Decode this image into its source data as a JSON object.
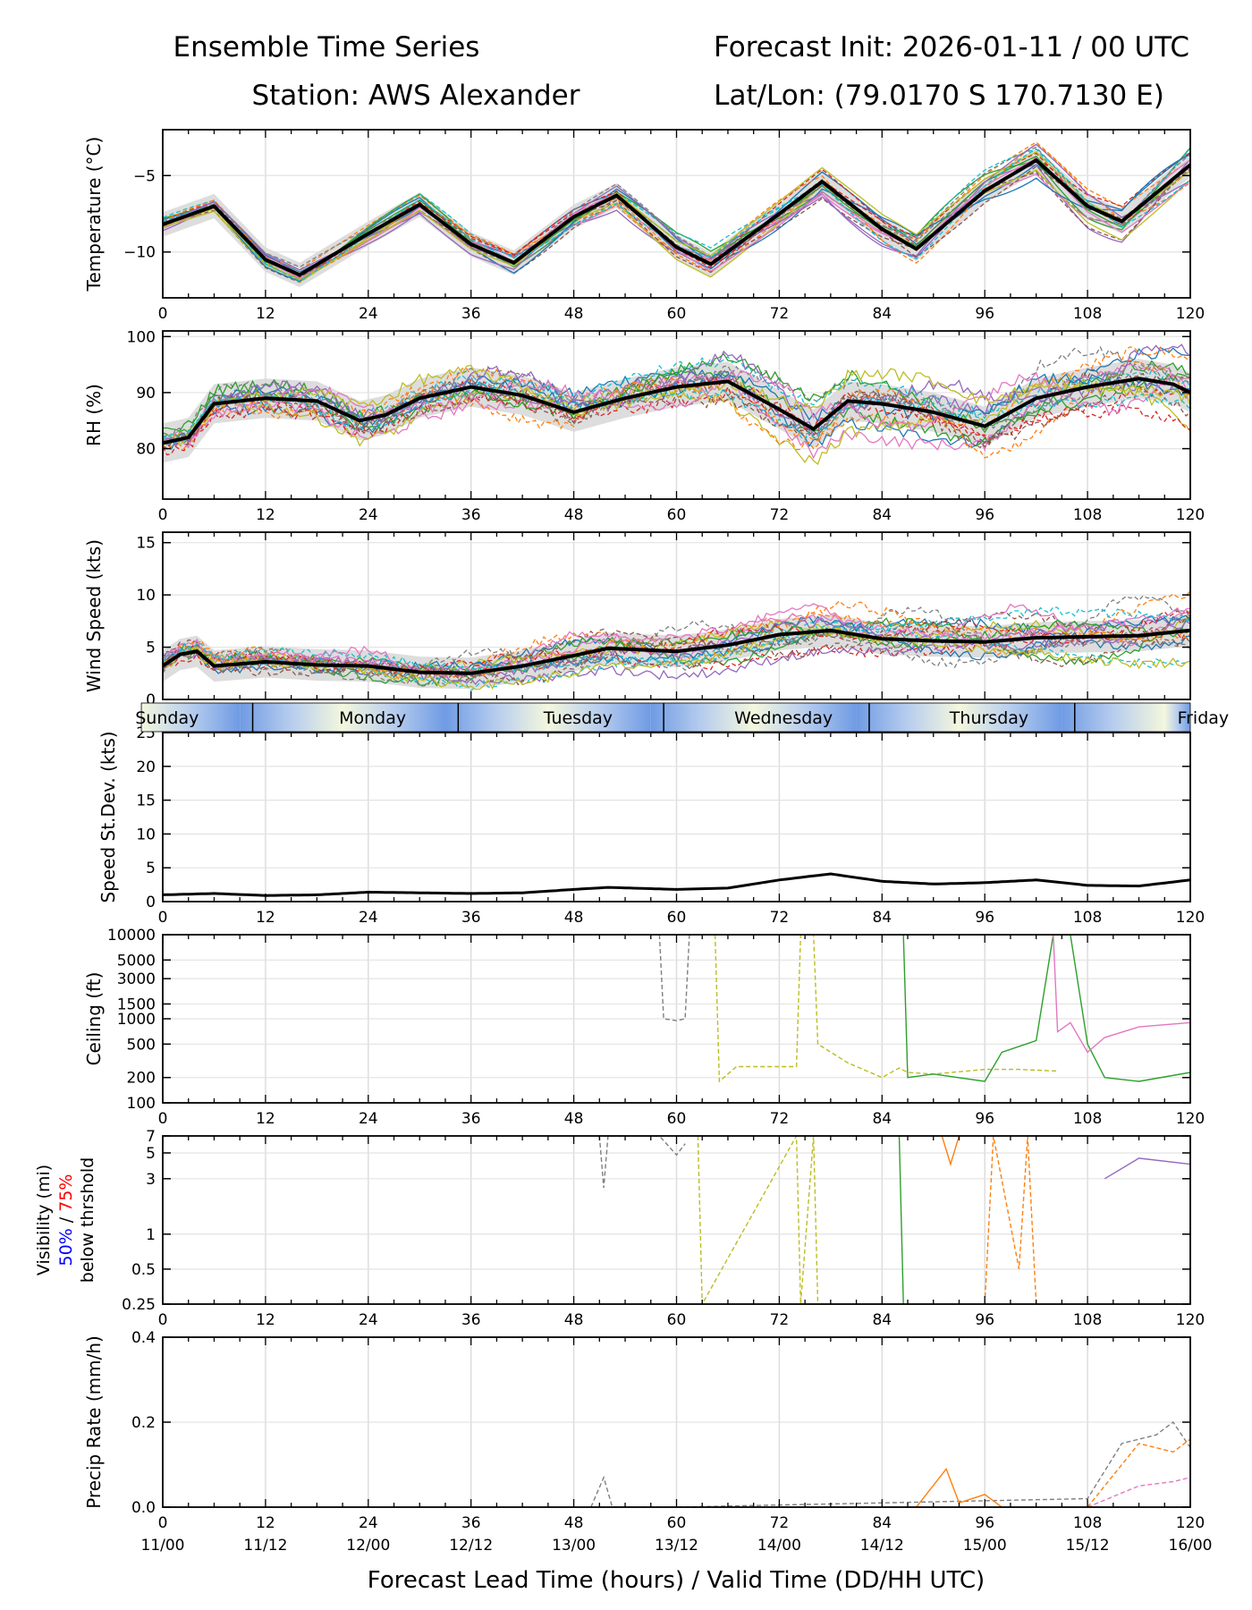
{
  "header": {
    "title_left": "Ensemble Time Series",
    "title_right": "Forecast Init: 2026-01-11 / 00 UTC",
    "station": "Station: AWS Alexander",
    "latlon": "Lat/Lon: (79.0170 S 170.7130 E)"
  },
  "xaxis": {
    "ticks": [
      0,
      12,
      24,
      36,
      48,
      60,
      72,
      84,
      96,
      108,
      120
    ],
    "valid_times": [
      "11/00",
      "11/12",
      "12/00",
      "12/12",
      "13/00",
      "13/12",
      "14/00",
      "14/12",
      "15/00",
      "15/12",
      "16/00"
    ],
    "label": "Forecast Lead Time (hours) / Valid Time (DD/HH UTC)"
  },
  "day_band": [
    "Sunday",
    "Monday",
    "Tuesday",
    "Wednesday",
    "Thursday",
    "Friday"
  ],
  "chart_data": [
    {
      "type": "line",
      "id": "temperature",
      "ylabel": "Temperature (°C)",
      "ylim": [
        -13,
        -2
      ],
      "yticks": [
        -10,
        -5
      ],
      "x": [
        0,
        6,
        12,
        16,
        24,
        30,
        36,
        41,
        48,
        53,
        60,
        64,
        72,
        77,
        84,
        88,
        96,
        102,
        108,
        112,
        120
      ],
      "mean": [
        -8.2,
        -7.0,
        -10.5,
        -11.5,
        -8.8,
        -6.9,
        -9.5,
        -10.7,
        -7.7,
        -6.3,
        -9.7,
        -10.8,
        -7.5,
        -5.4,
        -8.5,
        -9.8,
        -6.0,
        -4.0,
        -7.0,
        -8.0,
        -4.3
      ],
      "members": 20,
      "spread": 0.8
    },
    {
      "type": "line",
      "id": "rh",
      "ylabel": "RH (%)",
      "ylim": [
        71,
        101
      ],
      "yticks": [
        80,
        90,
        100
      ],
      "x": [
        0,
        3,
        6,
        12,
        18,
        23,
        26,
        30,
        36,
        42,
        48,
        54,
        60,
        66,
        72,
        76,
        80,
        84,
        90,
        96,
        102,
        108,
        114,
        118,
        120
      ],
      "mean": [
        81,
        82,
        88,
        89,
        88.5,
        85,
        86,
        89,
        91,
        89.5,
        86.5,
        89,
        91,
        92,
        87,
        83.5,
        88.5,
        88,
        86.5,
        84,
        89,
        91,
        92.5,
        91.5,
        90
      ],
      "members": 20,
      "spread": 3.5
    },
    {
      "type": "line",
      "id": "wind",
      "ylabel": "Wind Speed (kts)",
      "ylim": [
        0,
        16
      ],
      "yticks": [
        0,
        5,
        10,
        15
      ],
      "x": [
        0,
        2,
        4,
        6,
        12,
        18,
        24,
        30,
        36,
        42,
        48,
        52,
        60,
        66,
        72,
        78,
        84,
        90,
        96,
        102,
        108,
        114,
        120
      ],
      "mean": [
        3.2,
        4.3,
        4.6,
        3.2,
        3.6,
        3.3,
        3.2,
        2.6,
        2.5,
        3.2,
        4.2,
        4.9,
        4.6,
        5.2,
        6.2,
        6.6,
        5.8,
        5.6,
        5.5,
        5.9,
        6.0,
        6.1,
        6.6
      ],
      "members": 20,
      "spread": 1.5
    },
    {
      "type": "line",
      "id": "speed_stdev",
      "ylabel": "Speed St.Dev. (kts)",
      "ylim": [
        0,
        25
      ],
      "yticks": [
        0,
        5,
        10,
        15,
        20,
        25
      ],
      "x": [
        0,
        6,
        12,
        18,
        24,
        30,
        36,
        42,
        48,
        52,
        60,
        66,
        72,
        78,
        84,
        90,
        96,
        102,
        108,
        114,
        120
      ],
      "values": [
        1.0,
        1.2,
        0.9,
        1.0,
        1.4,
        1.3,
        1.2,
        1.3,
        1.8,
        2.1,
        1.8,
        2.0,
        3.2,
        4.1,
        3.0,
        2.6,
        2.8,
        3.2,
        2.4,
        2.3,
        3.2
      ]
    },
    {
      "type": "line",
      "id": "ceiling",
      "ylabel": "Ceiling (ft)",
      "scale": "log",
      "ylim": [
        100,
        10000
      ],
      "yticks": [
        100,
        200,
        500,
        1000,
        1500,
        3000,
        5000,
        10000
      ],
      "series": [
        {
          "name": "member-gray",
          "dashed": true,
          "x": [
            58,
            58.5,
            60,
            61,
            61.5
          ],
          "values": [
            10000,
            1000,
            950,
            1000,
            10000
          ]
        },
        {
          "name": "member-olive",
          "dashed": true,
          "x": [
            64.5,
            65,
            67,
            74,
            74.5,
            76,
            76.5,
            80,
            84,
            86,
            87,
            90,
            96,
            100,
            104,
            104.5
          ],
          "values": [
            10000,
            180,
            270,
            270,
            10000,
            10000,
            500,
            300,
            200,
            260,
            230,
            220,
            250,
            250,
            240,
            240
          ]
        },
        {
          "name": "member-green",
          "dashed": false,
          "x": [
            86.5,
            87,
            90,
            96,
            98,
            102,
            104,
            106,
            108,
            110,
            114,
            120
          ],
          "values": [
            10000,
            200,
            220,
            180,
            400,
            550,
            10000,
            10000,
            500,
            200,
            180,
            230
          ]
        },
        {
          "name": "member-pink",
          "dashed": false,
          "x": [
            104,
            104.5,
            106,
            108,
            110,
            114,
            120
          ],
          "values": [
            10000,
            700,
            900,
            400,
            600,
            800,
            900
          ]
        }
      ]
    },
    {
      "type": "line",
      "id": "visibility",
      "ylabel": "Visibility (mi)",
      "ylabel_50": "50%",
      "ylabel_sep": " / ",
      "ylabel_75": "75%",
      "ylabel_below": "below thrshold",
      "scale": "log",
      "ylim": [
        0.25,
        7
      ],
      "yticks": [
        0.25,
        0.5,
        1,
        3,
        5,
        7
      ],
      "series": [
        {
          "name": "member-gray",
          "dashed": true,
          "x": [
            51,
            51.5,
            52,
            58,
            60,
            61
          ],
          "values": [
            7,
            2.5,
            7,
            7,
            4.8,
            6
          ]
        },
        {
          "name": "member-olive",
          "dashed": true,
          "x": [
            62.5,
            63,
            74,
            74.5,
            76,
            76.5
          ],
          "values": [
            7,
            0.25,
            7,
            0.25,
            7,
            0.25
          ]
        },
        {
          "name": "member-green",
          "dashed": false,
          "x": [
            86,
            86.5
          ],
          "values": [
            7,
            0.25
          ]
        },
        {
          "name": "member-orange",
          "dashed": false,
          "x": [
            91,
            92,
            93
          ],
          "values": [
            7,
            4,
            7
          ]
        },
        {
          "name": "member-orange2",
          "dashed": true,
          "x": [
            96,
            97,
            100,
            101,
            102
          ],
          "values": [
            0.25,
            7,
            0.5,
            7,
            0.25
          ]
        },
        {
          "name": "member-purple",
          "dashed": false,
          "x": [
            110,
            114,
            120
          ],
          "values": [
            3,
            4.5,
            4
          ]
        }
      ]
    },
    {
      "type": "line",
      "id": "precip",
      "ylabel": "Precip Rate (mm/h)",
      "ylim": [
        0,
        0.4
      ],
      "yticks": [
        0.0,
        0.2,
        0.4
      ],
      "series": [
        {
          "name": "member-gray",
          "dashed": true,
          "x": [
            50,
            51.5,
            52.5,
            60,
            108,
            112,
            116,
            118,
            120
          ],
          "values": [
            0,
            0.07,
            0,
            0,
            0.02,
            0.15,
            0.17,
            0.2,
            0.14
          ]
        },
        {
          "name": "member-orange",
          "dashed": false,
          "x": [
            88,
            91.5,
            93,
            96,
            98
          ],
          "values": [
            0,
            0.09,
            0.01,
            0.03,
            0
          ]
        },
        {
          "name": "member-orange2",
          "dashed": true,
          "x": [
            108,
            112,
            114,
            118,
            120
          ],
          "values": [
            0,
            0.1,
            0.15,
            0.13,
            0.16
          ]
        },
        {
          "name": "member-pink",
          "dashed": true,
          "x": [
            108,
            114,
            118,
            120
          ],
          "values": [
            0,
            0.05,
            0.06,
            0.07
          ]
        }
      ]
    }
  ]
}
